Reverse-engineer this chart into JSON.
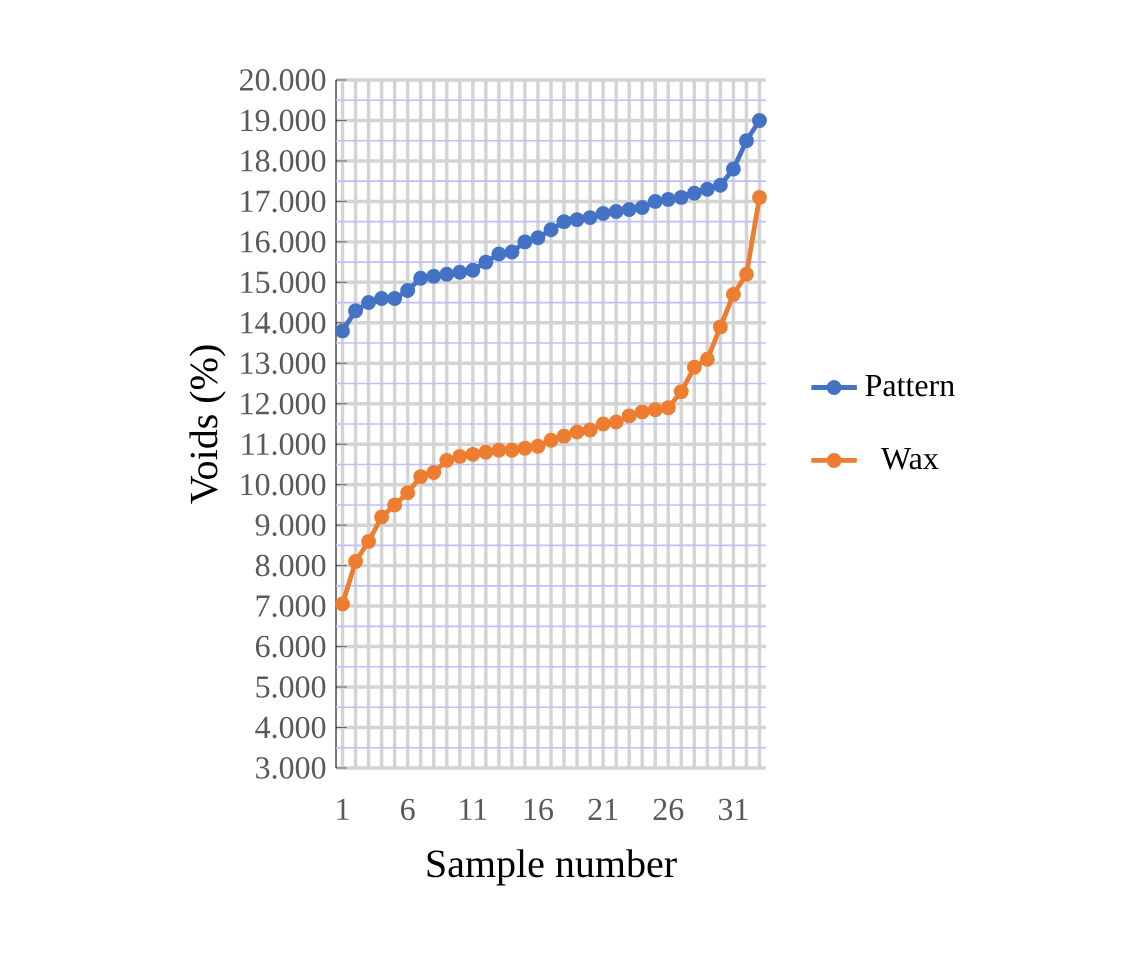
{
  "chart_data": {
    "type": "line",
    "xlabel": "Sample number",
    "ylabel": "Voids (%)",
    "categories": [
      "1",
      null,
      null,
      null,
      null,
      "6",
      null,
      null,
      null,
      null,
      "11",
      null,
      null,
      null,
      null,
      "16",
      null,
      null,
      null,
      null,
      "21",
      null,
      null,
      null,
      null,
      "26",
      null,
      null,
      null,
      null,
      "31",
      null,
      null
    ],
    "series": [
      {
        "name": "Pattern",
        "color": "#4472c4",
        "values": [
          13.8,
          14.3,
          14.5,
          14.6,
          14.6,
          14.8,
          15.1,
          15.15,
          15.2,
          15.25,
          15.3,
          15.5,
          15.7,
          15.75,
          16.0,
          16.1,
          16.3,
          16.5,
          16.55,
          16.6,
          16.7,
          16.75,
          16.8,
          16.85,
          17.0,
          17.05,
          17.1,
          17.2,
          17.3,
          17.4,
          17.8,
          18.5,
          19.0
        ]
      },
      {
        "name": "Wax",
        "color": "#ed7d31",
        "values": [
          7.05,
          8.1,
          8.6,
          9.2,
          9.5,
          9.8,
          10.2,
          10.3,
          10.6,
          10.7,
          10.75,
          10.8,
          10.85,
          10.85,
          10.9,
          10.95,
          11.1,
          11.2,
          11.3,
          11.35,
          11.5,
          11.55,
          11.7,
          11.8,
          11.85,
          11.9,
          12.3,
          12.9,
          13.1,
          13.9,
          14.7,
          15.2,
          17.1
        ]
      }
    ],
    "ylim": [
      3,
      20
    ],
    "yticks": [
      {
        "value": 3.5,
        "label": null
      },
      {
        "value": 4.5,
        "label": null
      },
      {
        "value": 5.5,
        "label": null
      },
      {
        "value": 6.5,
        "label": null
      },
      {
        "value": 7.5,
        "label": null
      },
      {
        "value": 8.5,
        "label": null
      },
      {
        "value": 9.5,
        "label": null
      },
      {
        "value": 10.5,
        "label": null
      },
      {
        "value": 11.5,
        "label": null
      },
      {
        "value": 12.5,
        "label": null
      },
      {
        "value": 13.5,
        "label": null
      },
      {
        "value": 14.5,
        "label": null
      },
      {
        "value": 15.5,
        "label": null
      },
      {
        "value": 16.5,
        "label": null
      },
      {
        "value": 17.5,
        "label": null
      },
      {
        "value": 18.5,
        "label": null
      },
      {
        "value": 19.5,
        "label": null
      },
      {
        "value": 3,
        "label": "3.000"
      },
      {
        "value": 4,
        "label": "4.000"
      },
      {
        "value": 5,
        "label": "5.000"
      },
      {
        "value": 6,
        "label": "6.000"
      },
      {
        "value": 7,
        "label": "7.000"
      },
      {
        "value": 8,
        "label": "8.000"
      },
      {
        "value": 9,
        "label": "9.000"
      },
      {
        "value": 10,
        "label": "10.000"
      },
      {
        "value": 11,
        "label": "11.000"
      },
      {
        "value": 12,
        "label": "12.000"
      },
      {
        "value": 13,
        "label": "13.000"
      },
      {
        "value": 14,
        "label": "14.000"
      },
      {
        "value": 15,
        "label": "15.000"
      },
      {
        "value": 16,
        "label": "16.000"
      },
      {
        "value": 17,
        "label": "17.000"
      },
      {
        "value": 18,
        "label": "18.000"
      },
      {
        "value": 19,
        "label": "19.000"
      },
      {
        "value": 20,
        "label": "20.000"
      }
    ],
    "grid": true,
    "legend": "right",
    "marker": "circle",
    "line_style": "solid"
  }
}
